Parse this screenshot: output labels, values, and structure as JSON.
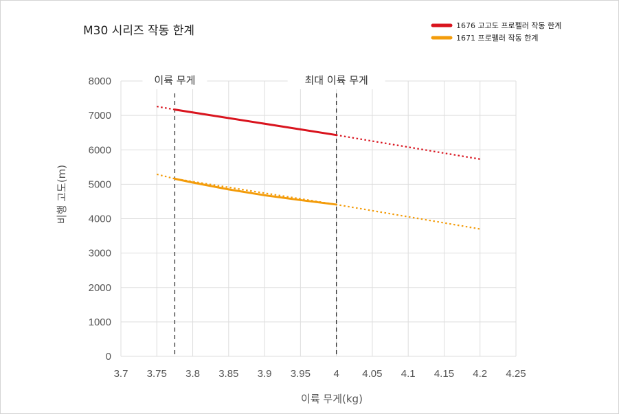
{
  "chart_data": {
    "type": "line",
    "title": "M30 시리즈 작동 한계",
    "xlabel": "이륙 무게(kg)",
    "ylabel": "비행 고도(m)",
    "xlim": [
      3.7,
      4.25
    ],
    "ylim": [
      0,
      8000
    ],
    "x_ticks": [
      "3.7",
      "3.75",
      "3.8",
      "3.85",
      "3.9",
      "3.95",
      "4",
      "4.05",
      "4.1",
      "4.15",
      "4.2",
      "4.25"
    ],
    "y_ticks": [
      "0",
      "1000",
      "2000",
      "3000",
      "4000",
      "5000",
      "6000",
      "7000",
      "8000"
    ],
    "grid": true,
    "legend_position": "top-right",
    "vertical_markers": [
      {
        "x": 3.775,
        "label": "이륙 무게"
      },
      {
        "x": 4.0,
        "label": "최대 이륙 무게"
      }
    ],
    "series": [
      {
        "name": "1676 고고도 프로펠러 작동 한계",
        "color": "#d9141e",
        "solid": [
          [
            3.775,
            7170
          ],
          [
            4.0,
            6430
          ]
        ],
        "dotted": [
          [
            3.75,
            7260
          ],
          [
            3.775,
            7170
          ],
          [
            4.0,
            6430
          ],
          [
            4.2,
            5730
          ]
        ]
      },
      {
        "name": "1671 프로펠러 작동 한계",
        "color": "#f39c0b",
        "solid": [
          [
            3.775,
            5160
          ],
          [
            3.8,
            5050
          ],
          [
            3.85,
            4850
          ],
          [
            3.9,
            4680
          ],
          [
            3.95,
            4540
          ],
          [
            4.0,
            4410
          ]
        ],
        "dotted": [
          [
            3.75,
            5290
          ],
          [
            3.775,
            5160
          ],
          [
            4.0,
            4410
          ],
          [
            4.2,
            3700
          ]
        ]
      }
    ]
  }
}
